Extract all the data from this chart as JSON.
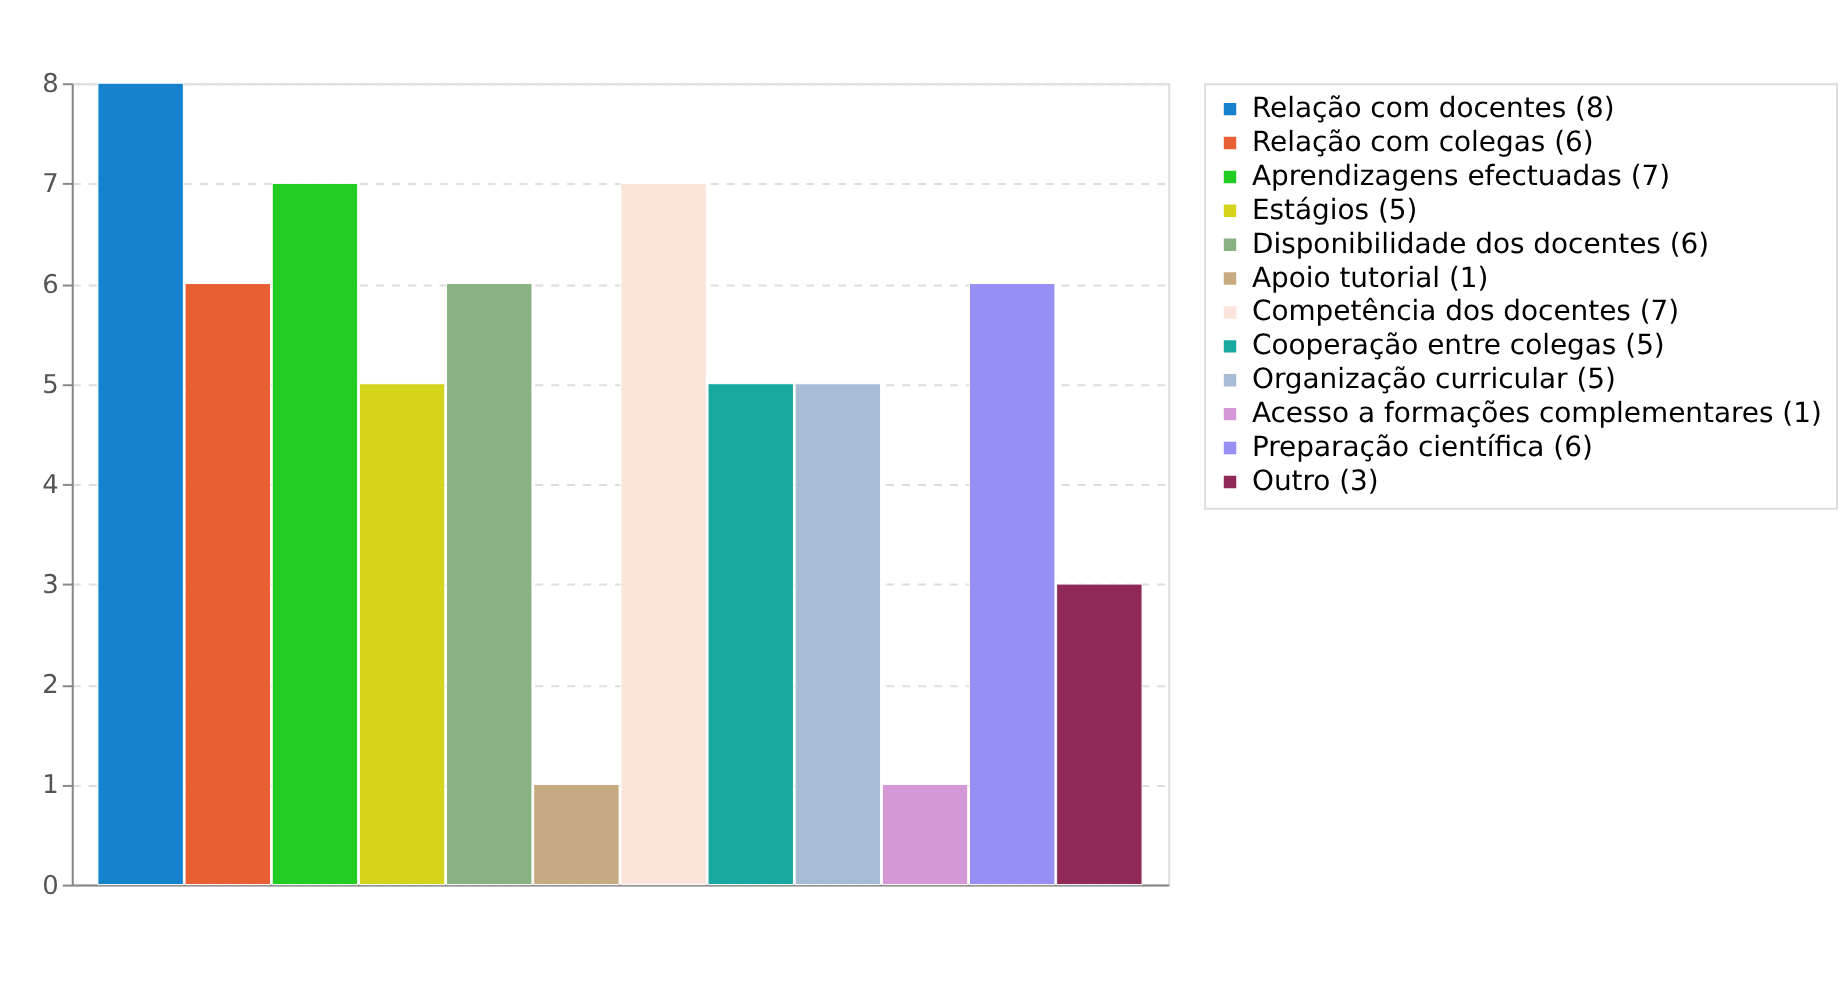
{
  "chart_data": {
    "type": "bar",
    "categories": [
      null,
      null,
      null,
      null,
      null,
      null,
      null,
      null,
      null,
      null,
      null,
      null
    ],
    "series": [
      {
        "name": "Relação com docentes (8)",
        "color": "#1482cc",
        "values": [
          8,
          null,
          null,
          null,
          null,
          null,
          null,
          null,
          null,
          null,
          null,
          null
        ]
      },
      {
        "name": "Relação com colegas (6)",
        "color": "#e95f34",
        "values": [
          null,
          6,
          null,
          null,
          null,
          null,
          null,
          null,
          null,
          null,
          null,
          null
        ]
      },
      {
        "name": "Aprendizagens efectuadas (7)",
        "color": "#22cc22",
        "values": [
          null,
          null,
          7,
          null,
          null,
          null,
          null,
          null,
          null,
          null,
          null,
          null
        ]
      },
      {
        "name": "Estágios (5)",
        "color": "#d4d41c",
        "values": [
          null,
          null,
          null,
          5,
          null,
          null,
          null,
          null,
          null,
          null,
          null,
          null
        ]
      },
      {
        "name": "Disponibilidade dos docentes (6)",
        "color": "#88b282",
        "values": [
          null,
          null,
          null,
          null,
          6,
          null,
          null,
          null,
          null,
          null,
          null,
          null
        ]
      },
      {
        "name": "Apoio tutorial (1)",
        "color": "#c8aa82",
        "values": [
          null,
          null,
          null,
          null,
          null,
          1,
          null,
          null,
          null,
          null,
          null,
          null
        ]
      },
      {
        "name": "Competência dos docentes (7)",
        "color": "#fae4dc",
        "values": [
          null,
          null,
          null,
          null,
          null,
          null,
          7,
          null,
          null,
          null,
          null,
          null
        ]
      },
      {
        "name": "Cooperação entre colegas (5)",
        "color": "#17a8a0",
        "values": [
          null,
          null,
          null,
          null,
          null,
          null,
          null,
          5,
          null,
          null,
          null,
          null
        ]
      },
      {
        "name": "Organização curricular (5)",
        "color": "#a8bcd6",
        "values": [
          null,
          null,
          null,
          null,
          null,
          null,
          null,
          null,
          5,
          null,
          null,
          null
        ]
      },
      {
        "name": "Acesso a formações complementares (1)",
        "color": "#d498d6",
        "values": [
          null,
          null,
          null,
          null,
          null,
          null,
          null,
          null,
          null,
          1,
          null,
          null
        ]
      },
      {
        "name": "Preparação científica (6)",
        "color": "#9690f4",
        "values": [
          null,
          null,
          null,
          null,
          null,
          null,
          null,
          null,
          null,
          null,
          6,
          null
        ]
      },
      {
        "name": "Outro (3)",
        "color": "#902858",
        "values": [
          null,
          null,
          null,
          null,
          null,
          null,
          null,
          null,
          null,
          null,
          null,
          3
        ]
      }
    ],
    "ylim": [
      0,
      8
    ],
    "yticks": [
      0,
      1,
      2,
      3,
      4,
      5,
      6,
      7,
      8
    ],
    "grid": "y",
    "legend": "top right"
  }
}
